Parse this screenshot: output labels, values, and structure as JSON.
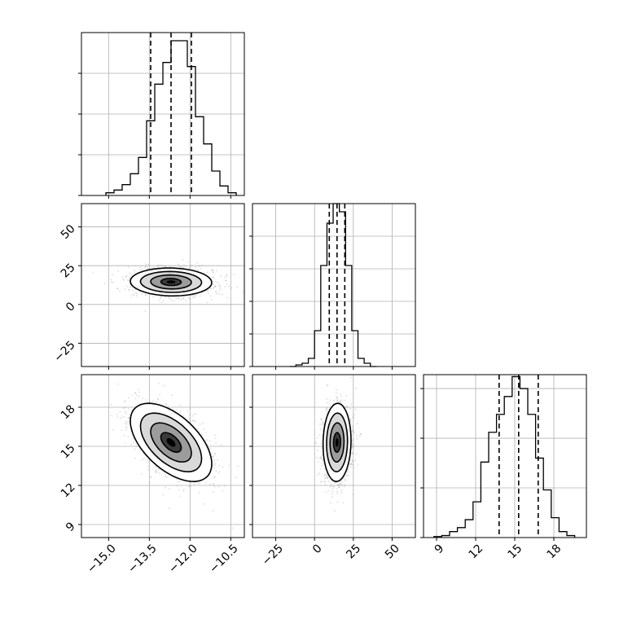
{
  "chart_data": {
    "type": "corner",
    "grid": true,
    "style": {
      "line_color": "#000000",
      "grid_color": "#b0b0b0",
      "point_color": "#9a9a9a"
    },
    "parameters": [
      {
        "range": [
          -16.0,
          -10.0
        ],
        "ticks": [
          -15.0,
          -13.5,
          -12.0,
          -10.5
        ],
        "tick_labels": [
          "−15.0",
          "−13.5",
          "−12.0",
          "−10.5"
        ],
        "mean": -12.7,
        "sd": 0.75,
        "quantiles": [
          -13.45,
          -12.7,
          -11.95
        ]
      },
      {
        "range": [
          -40,
          65
        ],
        "ticks": [
          -25,
          0,
          25,
          50
        ],
        "tick_labels": [
          "−25",
          "0",
          "25",
          "50"
        ],
        "mean": 14.5,
        "sd": 4.5,
        "quantiles": [
          9.5,
          14.5,
          19.5
        ]
      },
      {
        "range": [
          8.0,
          20.5
        ],
        "ticks": [
          9,
          12,
          15,
          18
        ],
        "tick_labels": [
          "9",
          "12",
          "15",
          "18"
        ],
        "mean": 15.3,
        "sd": 1.5,
        "quantiles": [
          13.8,
          15.3,
          16.8
        ]
      }
    ],
    "histograms": [
      {
        "param": 0,
        "bin_edges": [
          -15.1,
          -14.8,
          -14.5,
          -14.2,
          -13.9,
          -13.6,
          -13.3,
          -13.0,
          -12.7,
          -12.4,
          -12.1,
          -11.8,
          -11.5,
          -11.2,
          -10.9,
          -10.6,
          -10.3
        ],
        "counts": [
          2,
          4,
          8,
          16,
          28,
          55,
          82,
          98,
          114,
          114,
          95,
          58,
          38,
          18,
          7,
          2
        ],
        "ymax": 120,
        "yticks": [
          0,
          30,
          60,
          90
        ]
      },
      {
        "param": 1,
        "bin_edges": [
          -16,
          -12,
          -8,
          -4,
          0,
          4,
          8,
          12,
          16,
          20,
          24,
          28,
          32,
          36,
          40
        ],
        "counts": [
          0,
          1,
          2,
          5,
          22,
          62,
          88,
          100,
          95,
          62,
          22,
          5,
          2,
          0
        ],
        "ymax": 100,
        "yticks": [
          0,
          20,
          40,
          60,
          80
        ]
      },
      {
        "param": 2,
        "bin_edges": [
          8.8,
          9.4,
          10.0,
          10.6,
          11.2,
          11.8,
          12.4,
          13.0,
          13.6,
          14.2,
          14.8,
          15.4,
          16.0,
          16.6,
          17.2,
          17.8,
          18.4,
          19.0,
          19.6
        ],
        "counts": [
          0.5,
          1,
          3,
          5,
          9,
          18,
          38,
          53,
          62,
          71,
          81,
          75,
          62,
          40,
          24,
          10,
          3,
          1
        ],
        "ymax": 82,
        "yticks": [
          0,
          25,
          50,
          75
        ]
      }
    ],
    "pairs": [
      {
        "x_param": 0,
        "y_param": 1,
        "correlation": -0.05
      },
      {
        "x_param": 0,
        "y_param": 2,
        "correlation": -0.55
      },
      {
        "x_param": 1,
        "y_param": 2,
        "correlation": 0.05
      }
    ],
    "contour_levels_sigma": [
      0.5,
      1.0,
      1.5,
      2.0
    ]
  }
}
